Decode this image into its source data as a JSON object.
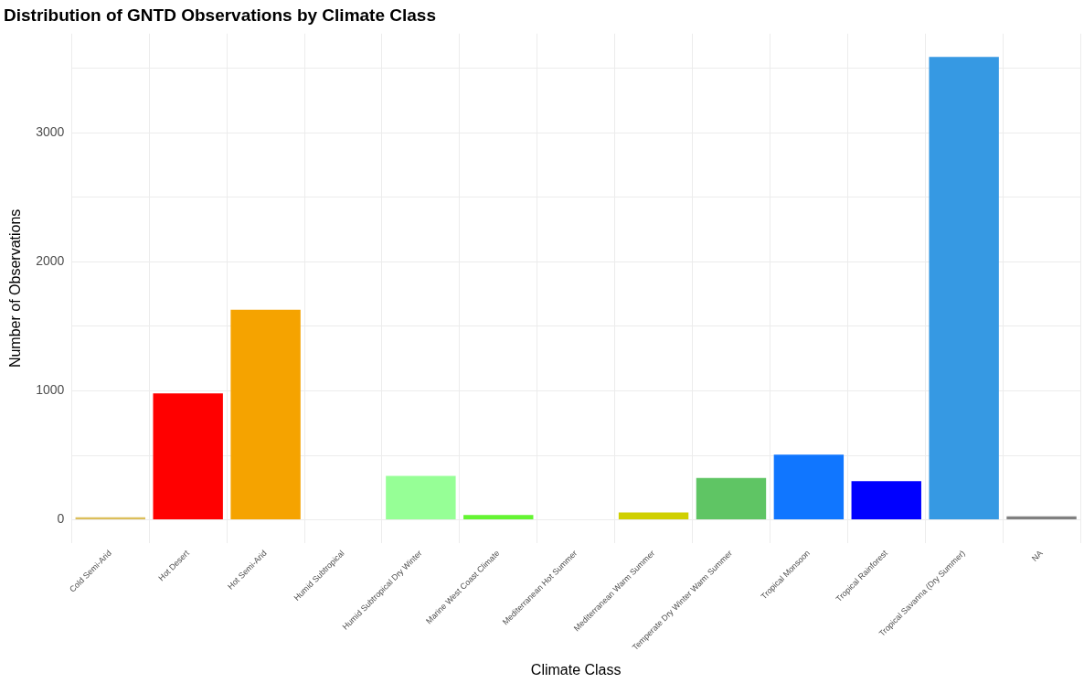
{
  "chart_data": {
    "type": "bar",
    "title": "Distribution of GNTD Observations by Climate Class",
    "xlabel": "Climate Class",
    "ylabel": "Number of Observations",
    "categories": [
      "Cold Semi-Arid",
      "Hot Desert",
      "Hot Semi-Arid",
      "Humid Subtropical",
      "Humid Subtropical Dry Winter",
      "Marine West Coast Climate",
      "Mediterranean Hot Summer",
      "Mediterranean Warm Summer",
      "Temperate Dry Winter Warm Summer",
      "Tropical Monsoon",
      "Tropical Rainforest",
      "Tropical Savanna (Dry Summer)",
      "NA"
    ],
    "values": [
      20,
      980,
      1630,
      null,
      340,
      37,
      null,
      58,
      325,
      505,
      300,
      3590,
      27
    ],
    "colors": [
      "#dcbe5a",
      "#ff0000",
      "#f5a300",
      "#00c800",
      "#96ff96",
      "#64f532",
      "#f5f07a",
      "#d0d000",
      "#5fc564",
      "#1076ff",
      "#0000ff",
      "#3699e3",
      "#808080"
    ],
    "ylim": [
      -180,
      3770
    ],
    "yticks": [
      0,
      {
        "value": 500,
        "label": null
      },
      1000,
      {
        "value": 1500,
        "label": null
      },
      2000,
      {
        "value": 2500,
        "label": null
      },
      3000,
      {
        "value": 3500,
        "label": null
      }
    ],
    "grid": true,
    "legend": false
  }
}
